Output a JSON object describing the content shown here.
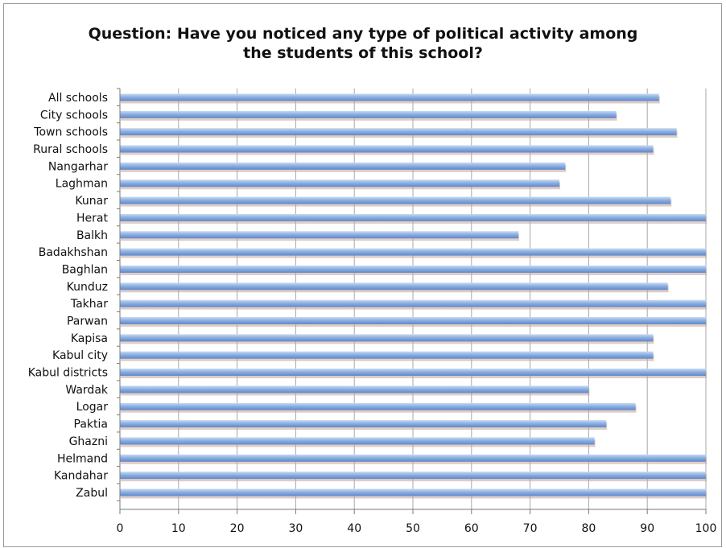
{
  "chart_data": {
    "type": "bar",
    "orientation": "horizontal",
    "title_lines": [
      "Question: Have you noticed any type of political activity among",
      "the students of this school?"
    ],
    "categories": [
      "All schools",
      "City schools",
      "Town schools",
      "Rural schools",
      "Nangarhar",
      "Laghman",
      "Kunar",
      "Herat",
      "Balkh",
      "Badakhshan",
      "Baghlan",
      "Kunduz",
      "Takhar",
      "Parwan",
      "Kapisa",
      "Kabul city",
      "Kabul districts",
      "Wardak",
      "Logar",
      "Paktia",
      "Ghazni",
      "Helmand",
      "Kandahar",
      "Zabul"
    ],
    "values": [
      92,
      84.7,
      95,
      91,
      76,
      75,
      94,
      100,
      68,
      100,
      100,
      93.5,
      100,
      100,
      91,
      91,
      100,
      80,
      88,
      83,
      81,
      100,
      100,
      100
    ],
    "xlim": [
      0,
      100
    ],
    "xticks": [
      "0",
      "10",
      "20",
      "30",
      "40",
      "50",
      "60",
      "70",
      "80",
      "90",
      "100"
    ],
    "grid": "vertical",
    "bar_color": "#7fa6dc",
    "legend": "none"
  }
}
